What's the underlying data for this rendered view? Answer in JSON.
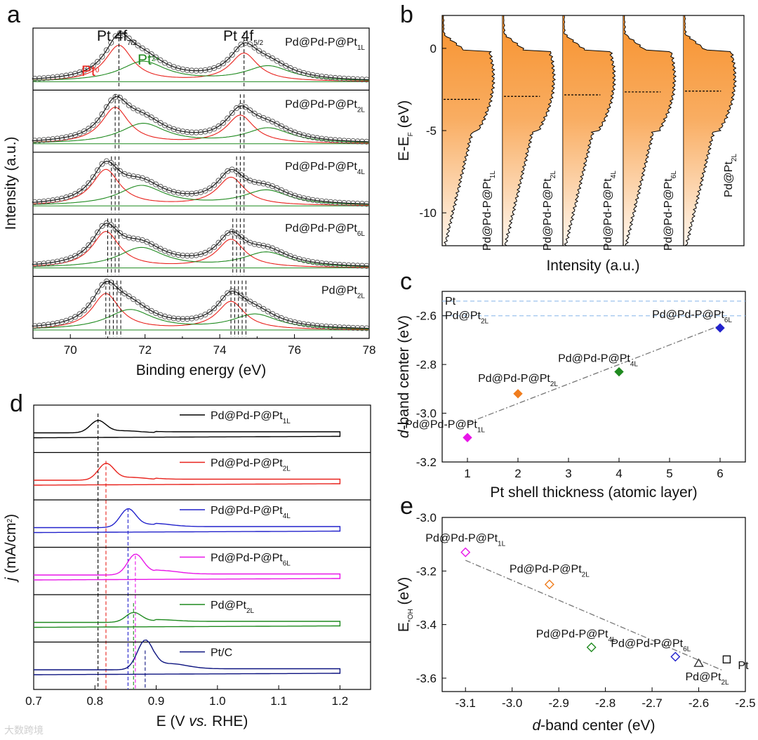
{
  "panels": {
    "a": {
      "letter": "a"
    },
    "b": {
      "letter": "b"
    },
    "c": {
      "letter": "c"
    },
    "d": {
      "letter": "d"
    },
    "e": {
      "letter": "e"
    }
  },
  "watermark": "大数跨境",
  "colors": {
    "black": "#000000",
    "red": "#e8221c",
    "green": "#1f8a1f",
    "blue": "#2222cc",
    "magenta": "#e815e8",
    "navy": "#0d1480",
    "orange": "#f07d1e",
    "dos_fill": "#f7922e",
    "ref_line": "#9cc3ee",
    "fit_line": "#777777"
  },
  "chart_data": [
    {
      "panel": "a",
      "type": "line",
      "xlabel": "Binding energy (eV)",
      "ylabel": "Intensity (a.u.)",
      "xlim": [
        69,
        78
      ],
      "xticks": [
        "70",
        "72",
        "74",
        "76",
        "78"
      ],
      "peak_labels": {
        "pt4f72": {
          "main": "Pt 4f",
          "sub": "7/2"
        },
        "pt4f52": {
          "main": "Pt 4f",
          "sub": "5/2"
        },
        "pt0": {
          "main": "Pt",
          "sup": "0"
        },
        "pt2": {
          "main": "Pt",
          "sup": "2+"
        }
      },
      "series": [
        {
          "name": "Pd@Pd-P@Pt",
          "sub": "1L",
          "pt0_peaks": [
            71.3,
            74.65
          ],
          "pt2_peaks": [
            71.95,
            75.3
          ],
          "ref_lines": [
            71.3,
            74.65
          ]
        },
        {
          "name": "Pd@Pd-P@Pt",
          "sub": "2L",
          "pt0_peaks": [
            71.2,
            74.55
          ],
          "pt2_peaks": [
            71.95,
            75.3
          ],
          "ref_lines": [
            71.2,
            71.3,
            74.55,
            74.65
          ]
        },
        {
          "name": "Pd@Pd-P@Pt",
          "sub": "4L",
          "pt0_peaks": [
            70.95,
            74.3
          ],
          "pt2_peaks": [
            71.9,
            75.25
          ],
          "ref_lines": [
            71.1,
            71.2,
            71.3,
            74.45,
            74.55,
            74.65
          ]
        },
        {
          "name": "Pd@Pd-P@Pt",
          "sub": "6L",
          "pt0_peaks": [
            70.95,
            74.3
          ],
          "pt2_peaks": [
            71.9,
            75.25
          ],
          "ref_lines": [
            71.0,
            71.1,
            71.2,
            71.3,
            74.35,
            74.45,
            74.55,
            74.65
          ]
        },
        {
          "name": "Pd@Pt",
          "sub": "2L",
          "pt0_peaks": [
            70.95,
            74.3
          ],
          "pt2_peaks": [
            71.6,
            74.95
          ],
          "ref_lines": [
            70.95,
            71.05,
            71.15,
            71.25,
            71.35,
            74.3,
            74.4,
            74.5,
            74.6,
            74.7
          ]
        }
      ]
    },
    {
      "panel": "b",
      "type": "area",
      "xlabel": "Intensity (a.u.)",
      "ylabel": "E-E",
      "ylabel_sub": "F",
      "ylabel_unit": " (eV)",
      "ylim": [
        -12,
        2
      ],
      "yticks": [
        "0",
        "-5",
        "-10"
      ],
      "series": [
        {
          "name": "Pd@Pd-P@Pt",
          "sub": "1L",
          "d_band_center": -3.1
        },
        {
          "name": "Pd@Pd-P@Pt",
          "sub": "2L",
          "d_band_center": -2.92
        },
        {
          "name": "Pd@Pd-P@Pt",
          "sub": "4L",
          "d_band_center": -2.83
        },
        {
          "name": "Pd@Pd-P@Pt",
          "sub": "6L",
          "d_band_center": -2.65
        },
        {
          "name": "Pd@Pt",
          "sub": "2L",
          "d_band_center": -2.6
        }
      ]
    },
    {
      "panel": "c",
      "type": "scatter",
      "xlabel": "Pt shell thickness (atomic layer)",
      "ylabel": "d",
      "ylabel_rest": "-band center (eV)",
      "xlim": [
        0.5,
        6.5
      ],
      "ylim": [
        -3.2,
        -2.5
      ],
      "xticks": [
        "1",
        "2",
        "3",
        "4",
        "5",
        "6"
      ],
      "yticks": [
        "-3.2",
        "-3.0",
        "-2.8",
        "-2.6"
      ],
      "reference_lines": [
        {
          "label": "Pt",
          "y": -2.54
        },
        {
          "label": "Pd@Pt",
          "sub": "2L",
          "y": -2.6
        }
      ],
      "points": [
        {
          "label": "Pd@Pd-P@Pt",
          "sub": "1L",
          "x": 1,
          "y": -3.1,
          "color": "#e815e8"
        },
        {
          "label": "Pd@Pd-P@Pt",
          "sub": "2L",
          "x": 2,
          "y": -2.92,
          "color": "#f07d1e"
        },
        {
          "label": "Pd@Pd-P@Pt",
          "sub": "4L",
          "x": 4,
          "y": -2.83,
          "color": "#1f8a1f"
        },
        {
          "label": "Pd@Pd-P@Pt",
          "sub": "6L",
          "x": 6,
          "y": -2.65,
          "color": "#2222cc"
        }
      ],
      "fit": {
        "x": [
          1,
          6
        ],
        "y": [
          -3.04,
          -2.64
        ]
      }
    },
    {
      "panel": "d",
      "type": "line",
      "xlabel_parts": [
        "E (V ",
        "vs.",
        " RHE)"
      ],
      "ylabel": "j",
      "ylabel_rest": " (mA/cm",
      "ylabel_sup": "2",
      "ylabel_end": ")",
      "xlim": [
        0.7,
        1.25
      ],
      "xticks": [
        "0.7",
        "0.8",
        "0.9",
        "1.0",
        "1.1",
        "1.2"
      ],
      "series": [
        {
          "name": "Pd@Pd-P@Pt",
          "sub": "1L",
          "color": "#000000",
          "peak_potential": 0.805,
          "peak_height": 0.25
        },
        {
          "name": "Pd@Pd-P@Pt",
          "sub": "2L",
          "color": "#e8221c",
          "peak_potential": 0.818,
          "peak_height": 0.34
        },
        {
          "name": "Pd@Pd-P@Pt",
          "sub": "4L",
          "color": "#2222cc",
          "peak_potential": 0.854,
          "peak_height": 0.38
        },
        {
          "name": "Pd@Pd-P@Pt",
          "sub": "6L",
          "color": "#e815e8",
          "peak_potential": 0.866,
          "peak_height": 0.42
        },
        {
          "name": "Pd@Pt",
          "sub": "2L",
          "color": "#1f8a1f",
          "peak_potential": 0.863,
          "peak_height": 0.2
        },
        {
          "name": "Pt/C",
          "sub": "",
          "color": "#0d1480",
          "peak_potential": 0.882,
          "peak_height": 0.6
        }
      ]
    },
    {
      "panel": "e",
      "type": "scatter",
      "xlabel": "d",
      "xlabel_rest": "-band center (eV)",
      "ylabel": "E",
      "ylabel_sub": "*OH",
      "ylabel_unit": " (eV)",
      "xlim": [
        -3.15,
        -2.5
      ],
      "ylim": [
        -3.65,
        -3.0
      ],
      "xticks": [
        "-3.1",
        "-3.0",
        "-2.9",
        "-2.8",
        "-2.7",
        "-2.6",
        "-2.5"
      ],
      "yticks": [
        "-3.0",
        "-3.2",
        "-3.4",
        "-3.6"
      ],
      "points": [
        {
          "label": "Pd@Pd-P@Pt",
          "sub": "1L",
          "x": -3.1,
          "y": -3.13,
          "color": "#e815e8",
          "marker": "diamond"
        },
        {
          "label": "Pd@Pd-P@Pt",
          "sub": "2L",
          "x": -2.92,
          "y": -3.25,
          "color": "#f07d1e",
          "marker": "diamond"
        },
        {
          "label": "Pd@Pd-P@Pt",
          "sub": "4L",
          "x": -2.83,
          "y": -3.485,
          "color": "#1f8a1f",
          "marker": "diamond"
        },
        {
          "label": "Pd@Pd-P@Pt",
          "sub": "6L",
          "x": -2.65,
          "y": -3.52,
          "color": "#2222cc",
          "marker": "diamond"
        },
        {
          "label": "Pd@Pt",
          "sub": "2L",
          "x": -2.6,
          "y": -3.545,
          "color": "#333333",
          "marker": "triangle"
        },
        {
          "label": "Pt",
          "sub": "",
          "x": -2.54,
          "y": -3.53,
          "color": "#111111",
          "marker": "square"
        }
      ],
      "fit": {
        "x": [
          -3.1,
          -2.55
        ],
        "y": [
          -3.16,
          -3.57
        ]
      }
    }
  ]
}
